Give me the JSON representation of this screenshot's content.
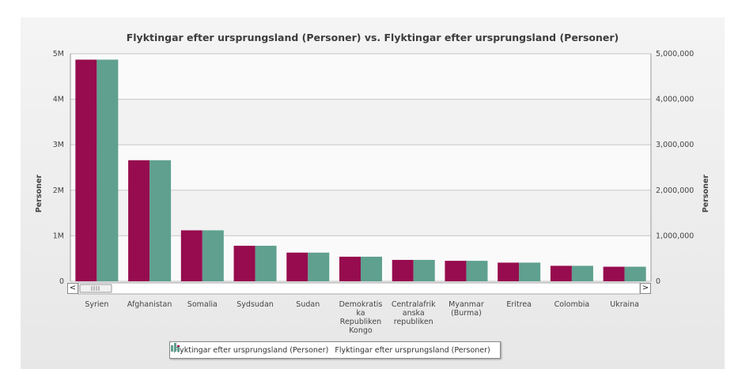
{
  "chart_data": {
    "type": "bar",
    "title": "Flyktingar efter ursprungsland (Personer) vs. Flyktingar efter ursprungsland (Personer)",
    "ylabel_left": "Personer",
    "ylabel_right": "Personer",
    "ylim": [
      0,
      5000000
    ],
    "left_ticks": [
      "0",
      "1M",
      "2M",
      "3M",
      "4M",
      "5M"
    ],
    "right_ticks": [
      "0",
      "1,000,000",
      "2,000,000",
      "3,000,000",
      "4,000,000",
      "5,000,000"
    ],
    "categories": [
      [
        "Syrien"
      ],
      [
        "Afghanistan"
      ],
      [
        "Somalia"
      ],
      [
        "Sydsudan"
      ],
      [
        "Sudan"
      ],
      [
        "Demokratis",
        "ka",
        "Republiken",
        "Kongo"
      ],
      [
        "Centralafrik",
        "anska",
        "republiken"
      ],
      [
        "Myanmar",
        "(Burma)"
      ],
      [
        "Eritrea"
      ],
      [
        "Colombia"
      ],
      [
        "Ukraina"
      ]
    ],
    "series": [
      {
        "name": "Flyktingar efter ursprungsland (Personer)",
        "color": "#960c4e",
        "values": [
          4870000,
          2660000,
          1120000,
          780000,
          630000,
          540000,
          470000,
          450000,
          410000,
          340000,
          320000
        ]
      },
      {
        "name": "Flyktingar efter ursprungsland (Personer)",
        "color": "#5fa08f",
        "values": [
          4870000,
          2660000,
          1120000,
          780000,
          630000,
          540000,
          470000,
          450000,
          410000,
          340000,
          320000
        ]
      }
    ],
    "grid": true,
    "legend_position": "bottom"
  }
}
